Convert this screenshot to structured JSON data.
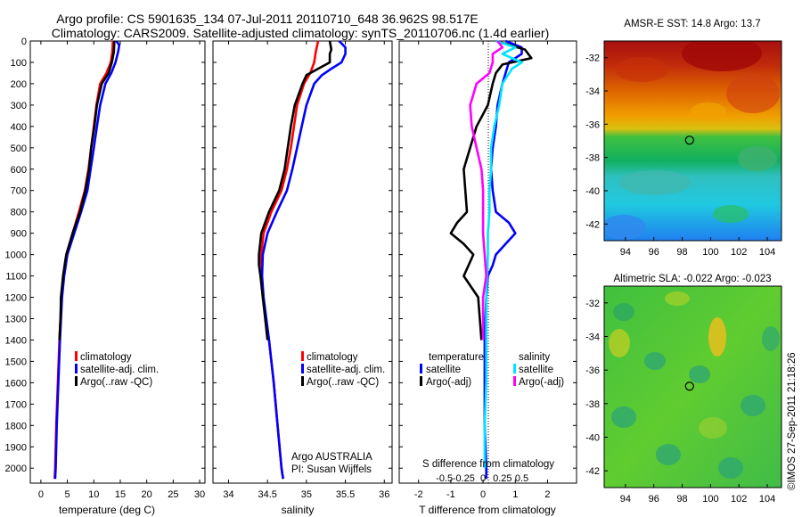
{
  "title": {
    "line1": "Argo profile: CS 5901635_134 07-Jul-2011 20110710_648 36.962S 98.517E",
    "line2": "Climatology: CARS2009. Satellite-adjusted climatology: synTS_20110706.nc (1.4d earlier)"
  },
  "colors": {
    "climatology": "#ff0000",
    "satellite": "#0000ff",
    "argo": "#000000",
    "salinity_satellite": "#00e5ff",
    "salinity_argo": "#ff00ff"
  },
  "chart_data": [
    {
      "type": "line",
      "name": "temperature-panel",
      "xlabel": "temperature (deg C)",
      "xlim": [
        -2,
        31
      ],
      "ylim": [
        2070,
        0
      ],
      "xticks": [
        "0",
        "5",
        "10",
        "15",
        "20",
        "25",
        "30"
      ],
      "xtick_values": [
        0,
        5,
        10,
        15,
        20,
        25,
        30
      ],
      "yticks": [
        "0",
        "100",
        "200",
        "300",
        "400",
        "500",
        "600",
        "700",
        "800",
        "900",
        "1000",
        "1100",
        "1200",
        "1300",
        "1400",
        "1500",
        "1600",
        "1700",
        "1800",
        "1900",
        "2000"
      ],
      "ytick_values": [
        0,
        100,
        200,
        300,
        400,
        500,
        600,
        700,
        800,
        900,
        1000,
        1100,
        1200,
        1300,
        1400,
        1500,
        1600,
        1700,
        1800,
        1900,
        2000
      ],
      "legend": [
        "climatology",
        "satellite-adj. clim.",
        "Argo(..raw -QC)"
      ],
      "series": [
        {
          "name": "climatology",
          "color": "#ff0000",
          "depth": [
            0,
            50,
            100,
            150,
            200,
            300,
            400,
            500,
            600,
            700,
            800,
            900,
            1000,
            1100,
            1200,
            1400,
            1600,
            1800,
            2000,
            2050
          ],
          "values": [
            13.6,
            13.5,
            13.2,
            12.4,
            11.2,
            10.5,
            10.0,
            9.5,
            9.0,
            8.3,
            7.2,
            6.0,
            4.8,
            4.2,
            3.9,
            3.5,
            3.2,
            2.9,
            2.7,
            2.6
          ]
        },
        {
          "name": "satellite-adj. clim.",
          "color": "#0000ff",
          "depth": [
            0,
            20,
            50,
            100,
            150,
            200,
            300,
            400,
            500,
            600,
            700,
            800,
            900,
            1000,
            1100,
            1200,
            1400,
            1600,
            1800,
            2000,
            2050
          ],
          "values": [
            14.3,
            14.8,
            14.6,
            14.1,
            13.3,
            12.2,
            11.2,
            10.6,
            10.0,
            9.4,
            8.8,
            7.6,
            6.3,
            5.0,
            4.4,
            4.0,
            3.6,
            3.3,
            3.0,
            2.8,
            2.7
          ]
        },
        {
          "name": "Argo(..raw -QC)",
          "color": "#000000",
          "depth": [
            0,
            50,
            100,
            150,
            200,
            300,
            400,
            500,
            600,
            700,
            800,
            900,
            950,
            1000,
            1100,
            1200,
            1300,
            1400
          ],
          "values": [
            13.9,
            13.8,
            13.4,
            12.8,
            11.5,
            10.6,
            10.1,
            9.5,
            9.1,
            8.4,
            7.4,
            6.0,
            5.4,
            4.8,
            4.2,
            3.8,
            3.7,
            3.5
          ]
        }
      ]
    },
    {
      "type": "line",
      "name": "salinity-panel",
      "xlabel": "salinity",
      "xlim": [
        33.8,
        36.1
      ],
      "ylim": [
        2070,
        0
      ],
      "xticks": [
        "34",
        "34.5",
        "35",
        "35.5",
        "36"
      ],
      "xtick_values": [
        34,
        34.5,
        35,
        35.5,
        36
      ],
      "legend": [
        "climatology",
        "satellite-adj. clim.",
        "Argo(..raw -QC)"
      ],
      "annotation": [
        "Argo AUSTRALIA",
        "PI: Susan Wijffels"
      ],
      "series": [
        {
          "name": "climatology",
          "color": "#ff0000",
          "depth": [
            0,
            50,
            100,
            150,
            200,
            300,
            400,
            500,
            600,
            700,
            800,
            900,
            1000,
            1100,
            1200,
            1400,
            1600,
            1800,
            2000,
            2050
          ],
          "values": [
            35.15,
            35.12,
            35.1,
            35.05,
            34.97,
            34.88,
            34.84,
            34.8,
            34.75,
            34.68,
            34.55,
            34.45,
            34.42,
            34.42,
            34.44,
            34.52,
            34.58,
            34.63,
            34.68,
            34.7
          ]
        },
        {
          "name": "satellite-adj. clim.",
          "color": "#0000ff",
          "depth": [
            0,
            30,
            60,
            100,
            130,
            160,
            200,
            300,
            400,
            500,
            600,
            700,
            800,
            900,
            1000,
            1100,
            1200,
            1400,
            1600,
            1800,
            2000,
            2050
          ],
          "values": [
            35.42,
            35.5,
            35.5,
            35.45,
            35.32,
            35.2,
            35.1,
            35.0,
            34.94,
            34.88,
            34.82,
            34.75,
            34.62,
            34.5,
            34.44,
            34.43,
            34.45,
            34.52,
            34.58,
            34.63,
            34.68,
            34.7
          ]
        },
        {
          "name": "Argo(..raw -QC)",
          "color": "#000000",
          "depth": [
            0,
            40,
            60,
            80,
            100,
            130,
            160,
            200,
            300,
            400,
            500,
            600,
            700,
            800,
            900,
            1000,
            1050,
            1100,
            1200,
            1300,
            1400
          ],
          "values": [
            35.3,
            35.32,
            35.3,
            35.3,
            35.3,
            35.15,
            35.0,
            34.95,
            34.85,
            34.8,
            34.76,
            34.72,
            34.65,
            34.52,
            34.42,
            34.39,
            34.39,
            34.41,
            34.44,
            34.47,
            34.5
          ]
        }
      ]
    },
    {
      "type": "line",
      "name": "difference-panel",
      "xlabel": "T difference from climatology",
      "xlabel_top": "S difference from climatology",
      "xlim": [
        -2.6,
        2.9
      ],
      "ylim": [
        2070,
        0
      ],
      "xticks": [
        "-2",
        "-1",
        "0",
        "1",
        "2"
      ],
      "xtick_values": [
        -2,
        -1,
        0,
        1,
        2
      ],
      "xticks_top": [
        "-0.5",
        "-0.25",
        "0",
        "0.25",
        "0.5"
      ],
      "xtick_top_values": [
        -1.2,
        -0.6,
        0,
        0.6,
        1.2
      ],
      "legend_headers": [
        "temperature",
        "salinity"
      ],
      "legend": [
        "satellite",
        "Argo(-adj)",
        "satellite",
        "Argo(-adj)"
      ],
      "series": [
        {
          "name": "temperature satellite",
          "color": "#0000ff",
          "depth": [
            0,
            30,
            60,
            100,
            150,
            200,
            300,
            400,
            500,
            600,
            700,
            800,
            850,
            900,
            950,
            1000,
            1050,
            1100,
            1200,
            1400,
            1600,
            1800,
            2000,
            2050
          ],
          "values": [
            0.7,
            1.2,
            1.2,
            0.8,
            0.7,
            0.6,
            0.45,
            0.4,
            0.3,
            0.25,
            0.3,
            0.4,
            0.8,
            1.0,
            0.7,
            0.4,
            0.3,
            0.15,
            0.1,
            0.05,
            0.05,
            0.05,
            0.1,
            0.1
          ]
        },
        {
          "name": "temperature Argo(-adj)",
          "color": "#000000",
          "depth": [
            0,
            40,
            80,
            110,
            150,
            200,
            300,
            400,
            500,
            600,
            700,
            800,
            850,
            900,
            950,
            1000,
            1100,
            1200,
            1400
          ],
          "values": [
            0.4,
            1.3,
            1.5,
            0.6,
            0.4,
            0.3,
            0.15,
            -0.2,
            -0.4,
            -0.6,
            -0.55,
            -0.5,
            -0.8,
            -1.0,
            -0.6,
            -0.3,
            -0.6,
            -0.15,
            -0.05
          ]
        },
        {
          "name": "salinity satellite",
          "color": "#00e5ff",
          "depth": [
            0,
            30,
            60,
            100,
            130,
            200,
            300,
            400,
            500,
            600,
            700,
            800,
            900,
            1000,
            1200,
            1400,
            1600,
            1800,
            2000
          ],
          "values": [
            0.4,
            1.0,
            0.6,
            1.2,
            0.9,
            0.6,
            0.5,
            0.35,
            0.25,
            0.25,
            0.2,
            0.2,
            0.15,
            0.15,
            0.1,
            0.1,
            0.1,
            0.05,
            0.05
          ]
        },
        {
          "name": "salinity Argo(-adj)",
          "color": "#ff00ff",
          "depth": [
            0,
            30,
            60,
            100,
            150,
            200,
            300,
            400,
            500,
            600,
            700,
            800,
            900,
            1000,
            1100,
            1200,
            1300,
            1400
          ],
          "values": [
            0.45,
            0.6,
            0.3,
            0.3,
            0.2,
            -0.2,
            -0.4,
            -0.35,
            -0.2,
            -0.05,
            0.0,
            0.0,
            0.0,
            0.05,
            0.1,
            0.0,
            0.0,
            0.0
          ]
        }
      ]
    },
    {
      "type": "heatmap",
      "name": "sst-map",
      "title": "AMSR-E SST: 14.8 Argo: 13.7",
      "xlim": [
        92.5,
        105
      ],
      "ylim": [
        -43,
        -31
      ],
      "xticks": [
        "94",
        "96",
        "98",
        "100",
        "102",
        "104"
      ],
      "xtick_values": [
        94,
        96,
        98,
        100,
        102,
        104
      ],
      "yticks": [
        "-32",
        "-34",
        "-36",
        "-38",
        "-40",
        "-42"
      ],
      "ytick_values": [
        -32,
        -34,
        -36,
        -38,
        -40,
        -42
      ],
      "marker": {
        "lon": 98.517,
        "lat": -36.962
      }
    },
    {
      "type": "heatmap",
      "name": "sla-map",
      "title": "Altimetric SLA: -0.022 Argo: -0.023",
      "xlim": [
        92.5,
        105
      ],
      "ylim": [
        -43,
        -31
      ],
      "xticks": [
        "94",
        "96",
        "98",
        "100",
        "102",
        "104"
      ],
      "xtick_values": [
        94,
        96,
        98,
        100,
        102,
        104
      ],
      "yticks": [
        "-32",
        "-34",
        "-36",
        "-38",
        "-40",
        "-42"
      ],
      "ytick_values": [
        -32,
        -34,
        -36,
        -38,
        -40,
        -42
      ],
      "marker": {
        "lon": 98.517,
        "lat": -36.962
      }
    }
  ],
  "credit": "©IMOS 27-Sep-2011 21:18:26"
}
